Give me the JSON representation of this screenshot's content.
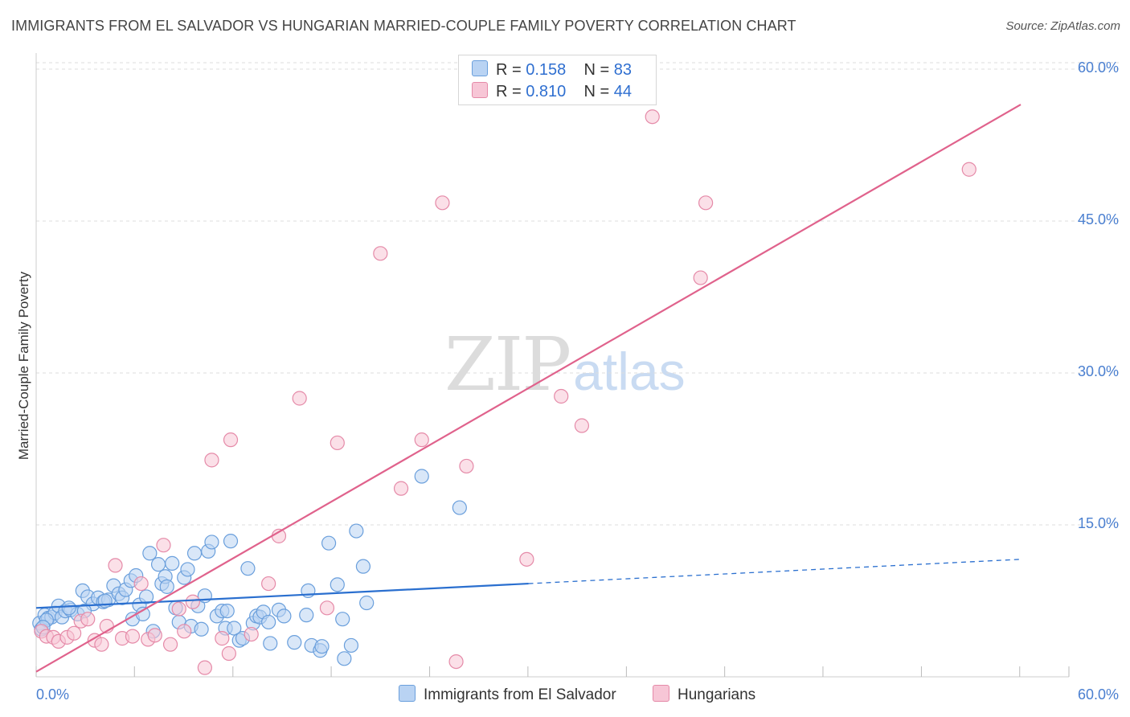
{
  "title": "IMMIGRANTS FROM EL SALVADOR VS HUNGARIAN MARRIED-COUPLE FAMILY POVERTY CORRELATION CHART",
  "source": "Source: ZipAtlas.com",
  "watermark": {
    "zip": "ZIP",
    "atlas": "atlas"
  },
  "colors": {
    "blue_fill": "#b9d3f3",
    "blue_stroke": "#6a9fdc",
    "blue_line": "#2a6fcf",
    "pink_fill": "#f7c6d6",
    "pink_stroke": "#e58aa8",
    "pink_line": "#e0628c",
    "grid": "#dddddd",
    "tick_label": "#4a7fd0"
  },
  "legend_top": {
    "rows": [
      {
        "series": "blue",
        "r_label": "R =",
        "r_value": "0.158",
        "n_label": "N =",
        "n_value": "83"
      },
      {
        "series": "pink",
        "r_label": "R =",
        "r_value": "0.810",
        "n_label": "N =",
        "n_value": "44"
      }
    ]
  },
  "chart_data": {
    "type": "scatter",
    "title": "IMMIGRANTS FROM EL SALVADOR VS HUNGARIAN MARRIED-COUPLE FAMILY POVERTY CORRELATION CHART",
    "xlabel": "",
    "ylabel": "Married-Couple Family Poverty",
    "xlim": [
      0,
      60
    ],
    "ylim": [
      0,
      61
    ],
    "x_tick_labels": [
      {
        "value": 0,
        "label": "0.0%"
      },
      {
        "value": 60,
        "label": "60.0%"
      }
    ],
    "y_ticks": [
      {
        "value": 15,
        "label": "15.0%"
      },
      {
        "value": 30,
        "label": "30.0%"
      },
      {
        "value": 45,
        "label": "45.0%"
      },
      {
        "value": 60,
        "label": "60.0%"
      }
    ],
    "x_minor_ticks": [
      0,
      5.71,
      11.43,
      17.14,
      22.86,
      28.57,
      34.29,
      40,
      45.71,
      51.43,
      57.14,
      60
    ],
    "legend": [
      {
        "name": "Immigrants from El Salvador",
        "color": "blue"
      },
      {
        "name": "Hungarians",
        "color": "pink"
      }
    ],
    "series": [
      {
        "name": "Immigrants from El Salvador",
        "color": "blue",
        "r": 0.158,
        "n": 83,
        "trend": {
          "x0": 0,
          "y0": 6.8,
          "x1": 28.6,
          "y1": 9.2,
          "dash_x1": 57.2,
          "dash_y1": 11.6
        },
        "points": [
          [
            0.2,
            5.3
          ],
          [
            0.3,
            4.7
          ],
          [
            0.5,
            6.1
          ],
          [
            0.7,
            5.8
          ],
          [
            0.9,
            5.9
          ],
          [
            1.1,
            6.3
          ],
          [
            1.3,
            7.0
          ],
          [
            1.5,
            5.9
          ],
          [
            1.7,
            6.5
          ],
          [
            2.0,
            6.6
          ],
          [
            2.4,
            6.2
          ],
          [
            2.7,
            8.5
          ],
          [
            3.0,
            7.9
          ],
          [
            3.3,
            7.2
          ],
          [
            3.6,
            7.8
          ],
          [
            3.9,
            7.4
          ],
          [
            4.2,
            7.6
          ],
          [
            4.5,
            9.0
          ],
          [
            4.8,
            8.2
          ],
          [
            5.0,
            7.8
          ],
          [
            5.2,
            8.6
          ],
          [
            5.5,
            9.5
          ],
          [
            5.6,
            5.7
          ],
          [
            5.8,
            10.0
          ],
          [
            6.0,
            7.1
          ],
          [
            6.2,
            6.2
          ],
          [
            6.4,
            7.9
          ],
          [
            6.6,
            12.2
          ],
          [
            6.8,
            4.5
          ],
          [
            7.1,
            11.1
          ],
          [
            7.3,
            9.2
          ],
          [
            7.5,
            9.9
          ],
          [
            7.6,
            8.9
          ],
          [
            7.9,
            11.2
          ],
          [
            8.1,
            6.8
          ],
          [
            8.3,
            5.4
          ],
          [
            8.6,
            9.8
          ],
          [
            8.8,
            10.6
          ],
          [
            9.0,
            5.0
          ],
          [
            9.2,
            12.2
          ],
          [
            9.4,
            7.0
          ],
          [
            9.6,
            4.7
          ],
          [
            9.8,
            8.0
          ],
          [
            10.0,
            12.4
          ],
          [
            10.2,
            13.3
          ],
          [
            10.5,
            6.0
          ],
          [
            10.8,
            6.5
          ],
          [
            11.0,
            4.8
          ],
          [
            11.1,
            6.5
          ],
          [
            11.3,
            13.4
          ],
          [
            11.5,
            4.8
          ],
          [
            11.8,
            3.6
          ],
          [
            12.0,
            3.8
          ],
          [
            12.3,
            10.7
          ],
          [
            12.6,
            5.3
          ],
          [
            12.8,
            6.0
          ],
          [
            13.0,
            5.9
          ],
          [
            13.2,
            6.4
          ],
          [
            13.5,
            5.4
          ],
          [
            13.6,
            3.3
          ],
          [
            14.1,
            6.6
          ],
          [
            14.4,
            6.0
          ],
          [
            15.0,
            3.4
          ],
          [
            15.7,
            6.1
          ],
          [
            15.8,
            8.5
          ],
          [
            16.0,
            3.1
          ],
          [
            16.5,
            2.6
          ],
          [
            16.6,
            3.0
          ],
          [
            17.0,
            13.2
          ],
          [
            17.5,
            9.1
          ],
          [
            17.8,
            5.7
          ],
          [
            17.9,
            1.8
          ],
          [
            18.3,
            3.1
          ],
          [
            18.6,
            14.4
          ],
          [
            19.0,
            10.9
          ],
          [
            19.2,
            7.3
          ],
          [
            22.4,
            19.8
          ],
          [
            24.6,
            16.7
          ],
          [
            0.6,
            5.6
          ],
          [
            1.9,
            6.8
          ],
          [
            2.8,
            6.5
          ],
          [
            4.0,
            7.5
          ],
          [
            0.4,
            4.9
          ]
        ]
      },
      {
        "name": "Hungarians",
        "color": "pink",
        "r": 0.81,
        "n": 44,
        "trend": {
          "x0": 0,
          "y0": 0.5,
          "x1": 57.2,
          "y1": 56.5
        },
        "points": [
          [
            0.3,
            4.5
          ],
          [
            0.6,
            4.0
          ],
          [
            1.0,
            3.9
          ],
          [
            1.3,
            3.5
          ],
          [
            1.8,
            3.9
          ],
          [
            2.2,
            4.3
          ],
          [
            2.6,
            5.5
          ],
          [
            3.0,
            5.7
          ],
          [
            3.4,
            3.6
          ],
          [
            3.8,
            3.2
          ],
          [
            4.1,
            5.0
          ],
          [
            4.6,
            11.0
          ],
          [
            5.0,
            3.8
          ],
          [
            5.6,
            4.0
          ],
          [
            6.1,
            9.2
          ],
          [
            6.5,
            3.7
          ],
          [
            6.9,
            4.1
          ],
          [
            7.4,
            13.0
          ],
          [
            7.8,
            3.2
          ],
          [
            8.3,
            6.7
          ],
          [
            8.6,
            4.5
          ],
          [
            9.1,
            7.4
          ],
          [
            9.8,
            0.9
          ],
          [
            10.2,
            21.4
          ],
          [
            10.8,
            3.8
          ],
          [
            11.2,
            2.3
          ],
          [
            11.3,
            23.4
          ],
          [
            12.5,
            4.2
          ],
          [
            13.5,
            9.2
          ],
          [
            14.1,
            13.9
          ],
          [
            15.3,
            27.5
          ],
          [
            16.9,
            6.8
          ],
          [
            17.5,
            23.1
          ],
          [
            20.0,
            41.8
          ],
          [
            21.2,
            18.6
          ],
          [
            22.4,
            23.4
          ],
          [
            23.6,
            46.8
          ],
          [
            24.4,
            1.5
          ],
          [
            25.0,
            20.8
          ],
          [
            28.5,
            11.6
          ],
          [
            30.5,
            27.7
          ],
          [
            31.7,
            24.8
          ],
          [
            35.8,
            55.3
          ],
          [
            38.6,
            39.4
          ],
          [
            38.9,
            46.8
          ],
          [
            54.2,
            50.1
          ]
        ]
      }
    ]
  }
}
